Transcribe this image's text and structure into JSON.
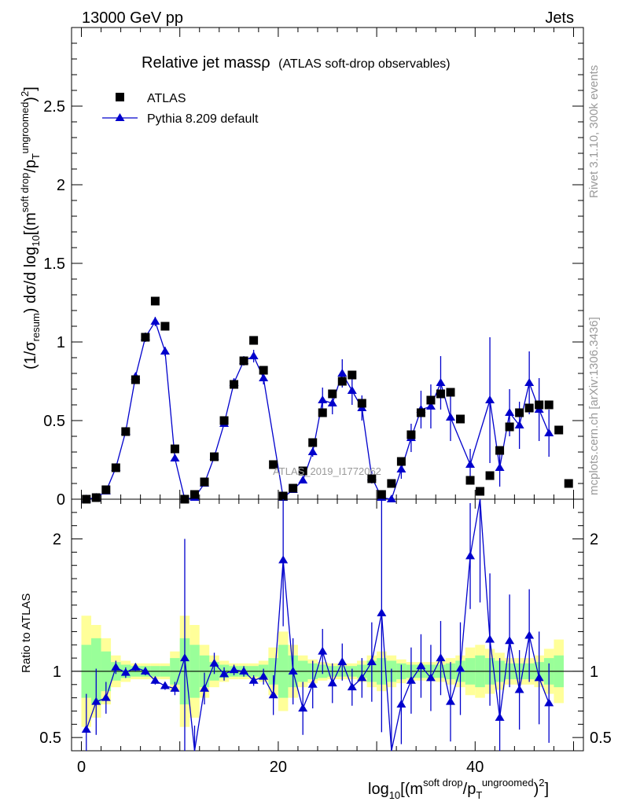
{
  "header": {
    "left": "13000 GeV pp",
    "right": "Jets"
  },
  "title": {
    "main": "Relative jet massρ",
    "sub": "(ATLAS soft-drop observables)"
  },
  "side_labels": {
    "rivet": "Rivet 3.1.10,  300k events",
    "mcplots": "mcplots.cern.ch [arXiv:1306.3436]"
  },
  "watermark": "ATLAS_2019_I1772062",
  "legend": {
    "data_label": "ATLAS",
    "mc_label": "Pythia 8.209 default"
  },
  "axis": {
    "top_ylabel": "(1/σresum) dσ/d log10[(m^softdrop/pT^ungroomed)^2]",
    "ratio_ylabel": "Ratio to ATLAS",
    "xlabel": "log10[(m^soft drop/pT^ungroomed)^2]"
  },
  "colors": {
    "data": "#000000",
    "mc": "#0000cc",
    "band_inner": "#99ff99",
    "band_outer": "#ffff99"
  },
  "chart_data": {
    "type": "scatter",
    "xlim": [
      -1,
      51
    ],
    "top": {
      "ylim": [
        0,
        3.0
      ],
      "yticks": [
        0,
        0.5,
        1,
        1.5,
        2,
        2.5
      ]
    },
    "ratio": {
      "ylim": [
        0.4,
        2.3
      ],
      "yticks": [
        0.5,
        1,
        2
      ],
      "reference": 1
    },
    "xticks": [
      0,
      20,
      40
    ],
    "data_series": {
      "name": "ATLAS",
      "x": [
        0.5,
        1.5,
        2.5,
        3.5,
        4.5,
        5.5,
        6.5,
        7.5,
        8.5,
        9.5,
        10.5,
        11.5,
        12.5,
        13.5,
        14.5,
        15.5,
        16.5,
        17.5,
        18.5,
        19.5,
        20.5,
        21.5,
        22.5,
        23.5,
        24.5,
        25.5,
        26.5,
        27.5,
        28.5,
        29.5,
        30.5,
        31.5,
        32.5,
        33.5,
        34.5,
        35.5,
        36.5,
        37.5,
        38.5,
        39.5,
        40.5,
        41.5,
        42.5,
        43.5,
        44.5,
        45.5,
        46.5,
        47.5,
        48.5,
        49.5
      ],
      "y": [
        0.0,
        0.01,
        0.06,
        0.2,
        0.43,
        0.76,
        1.03,
        1.26,
        1.1,
        0.32,
        0.0,
        0.03,
        0.11,
        0.27,
        0.5,
        0.73,
        0.88,
        1.01,
        0.82,
        0.22,
        0.02,
        0.07,
        0.18,
        0.36,
        0.55,
        0.67,
        0.75,
        0.79,
        0.61,
        0.13,
        0.03,
        0.1,
        0.24,
        0.41,
        0.55,
        0.63,
        0.67,
        0.68,
        0.51,
        0.12,
        0.05,
        0.15,
        0.31,
        0.46,
        0.55,
        0.58,
        0.6,
        0.6,
        0.44,
        0.1
      ]
    },
    "mc_series": {
      "name": "Pythia 8.209 default",
      "x": [
        0.5,
        1.5,
        2.5,
        3.5,
        4.5,
        5.5,
        6.5,
        7.5,
        8.5,
        9.5,
        10.5,
        11.5,
        12.5,
        13.5,
        14.5,
        15.5,
        16.5,
        17.5,
        18.5,
        20.5,
        21.5,
        22.5,
        23.5,
        24.5,
        25.5,
        26.5,
        27.5,
        28.5,
        29.5,
        30.5,
        31.5,
        32.5,
        33.5,
        34.5,
        35.5,
        36.5,
        37.5,
        39.5,
        41.5,
        42.5,
        43.5,
        44.5,
        45.5,
        46.5,
        47.5
      ],
      "y": [
        0.0,
        0.01,
        0.05,
        0.2,
        0.43,
        0.78,
        1.03,
        1.13,
        0.94,
        0.26,
        0.0,
        0.01,
        0.1,
        0.27,
        0.48,
        0.74,
        0.88,
        0.91,
        0.77,
        0.01,
        0.06,
        0.12,
        0.3,
        0.63,
        0.61,
        0.8,
        0.69,
        0.58,
        0.14,
        0.01,
        0.0,
        0.19,
        0.39,
        0.57,
        0.59,
        0.74,
        0.52,
        0.22,
        0.63,
        0.2,
        0.55,
        0.47,
        0.74,
        0.57,
        0.42
      ],
      "yerr": [
        0.0,
        0.0,
        0.01,
        0.01,
        0.01,
        0.02,
        0.03,
        0.03,
        0.03,
        0.02,
        0.0,
        0.0,
        0.01,
        0.01,
        0.02,
        0.03,
        0.03,
        0.04,
        0.04,
        0.0,
        0.01,
        0.02,
        0.03,
        0.08,
        0.07,
        0.09,
        0.09,
        0.08,
        0.04,
        0.01,
        0.0,
        0.06,
        0.09,
        0.12,
        0.14,
        0.17,
        0.15,
        0.1,
        0.4,
        0.12,
        0.15,
        0.15,
        0.2,
        0.2,
        0.15
      ]
    },
    "ratio_series": {
      "x": [
        0.5,
        1.5,
        2.5,
        3.5,
        4.5,
        5.5,
        6.5,
        7.5,
        8.5,
        9.5,
        10.5,
        11.5,
        12.5,
        13.5,
        14.5,
        15.5,
        16.5,
        17.5,
        18.5,
        19.5,
        20.5,
        21.5,
        22.5,
        23.5,
        24.5,
        25.5,
        26.5,
        27.5,
        28.5,
        29.5,
        30.5,
        31.5,
        32.5,
        33.5,
        34.5,
        35.5,
        36.5,
        37.5,
        38.5,
        39.5,
        40.5,
        41.5,
        42.5,
        43.5,
        44.5,
        45.5,
        46.5,
        47.5
      ],
      "y": [
        0.56,
        0.77,
        0.8,
        1.03,
        0.99,
        1.03,
        1.0,
        0.93,
        0.89,
        0.87,
        1.1,
        0.39,
        0.87,
        1.06,
        0.98,
        1.01,
        1.0,
        0.93,
        0.96,
        0.82,
        1.84,
        1.0,
        0.72,
        0.9,
        1.15,
        0.91,
        1.07,
        0.88,
        0.95,
        1.07,
        1.44,
        0.22,
        0.75,
        0.93,
        1.04,
        0.95,
        1.1,
        0.77,
        1.02,
        1.87,
        2.52,
        1.24,
        0.65,
        1.23,
        0.86,
        1.27,
        0.95,
        0.76
      ],
      "yerr": [
        0.27,
        0.25,
        0.12,
        0.05,
        0.04,
        0.03,
        0.03,
        0.03,
        0.03,
        0.05,
        0.9,
        0.2,
        0.12,
        0.08,
        0.05,
        0.04,
        0.04,
        0.04,
        0.06,
        0.15,
        0.5,
        0.25,
        0.2,
        0.18,
        0.17,
        0.15,
        0.14,
        0.14,
        0.15,
        0.3,
        0.9,
        0.8,
        0.3,
        0.25,
        0.24,
        0.25,
        0.28,
        0.3,
        0.35,
        0.4,
        1.0,
        0.5,
        0.45,
        0.35,
        0.3,
        0.35,
        0.35,
        0.3
      ]
    },
    "band_inner": [
      0.2,
      0.25,
      0.15,
      0.07,
      0.05,
      0.04,
      0.04,
      0.04,
      0.04,
      0.1,
      0.25,
      0.2,
      0.12,
      0.07,
      0.05,
      0.04,
      0.04,
      0.04,
      0.05,
      0.1,
      0.2,
      0.12,
      0.08,
      0.06,
      0.05,
      0.04,
      0.04,
      0.04,
      0.05,
      0.08,
      0.1,
      0.08,
      0.06,
      0.05,
      0.05,
      0.05,
      0.05,
      0.06,
      0.08,
      0.1,
      0.12,
      0.1,
      0.08,
      0.06,
      0.06,
      0.06,
      0.07,
      0.1,
      0.12
    ],
    "band_outer": [
      0.42,
      0.35,
      0.25,
      0.12,
      0.08,
      0.06,
      0.06,
      0.06,
      0.06,
      0.15,
      0.42,
      0.35,
      0.2,
      0.12,
      0.08,
      0.06,
      0.06,
      0.06,
      0.08,
      0.18,
      0.3,
      0.2,
      0.12,
      0.09,
      0.07,
      0.06,
      0.06,
      0.06,
      0.08,
      0.12,
      0.15,
      0.12,
      0.09,
      0.07,
      0.07,
      0.07,
      0.08,
      0.1,
      0.12,
      0.18,
      0.2,
      0.17,
      0.14,
      0.1,
      0.1,
      0.1,
      0.12,
      0.17,
      0.24
    ]
  }
}
